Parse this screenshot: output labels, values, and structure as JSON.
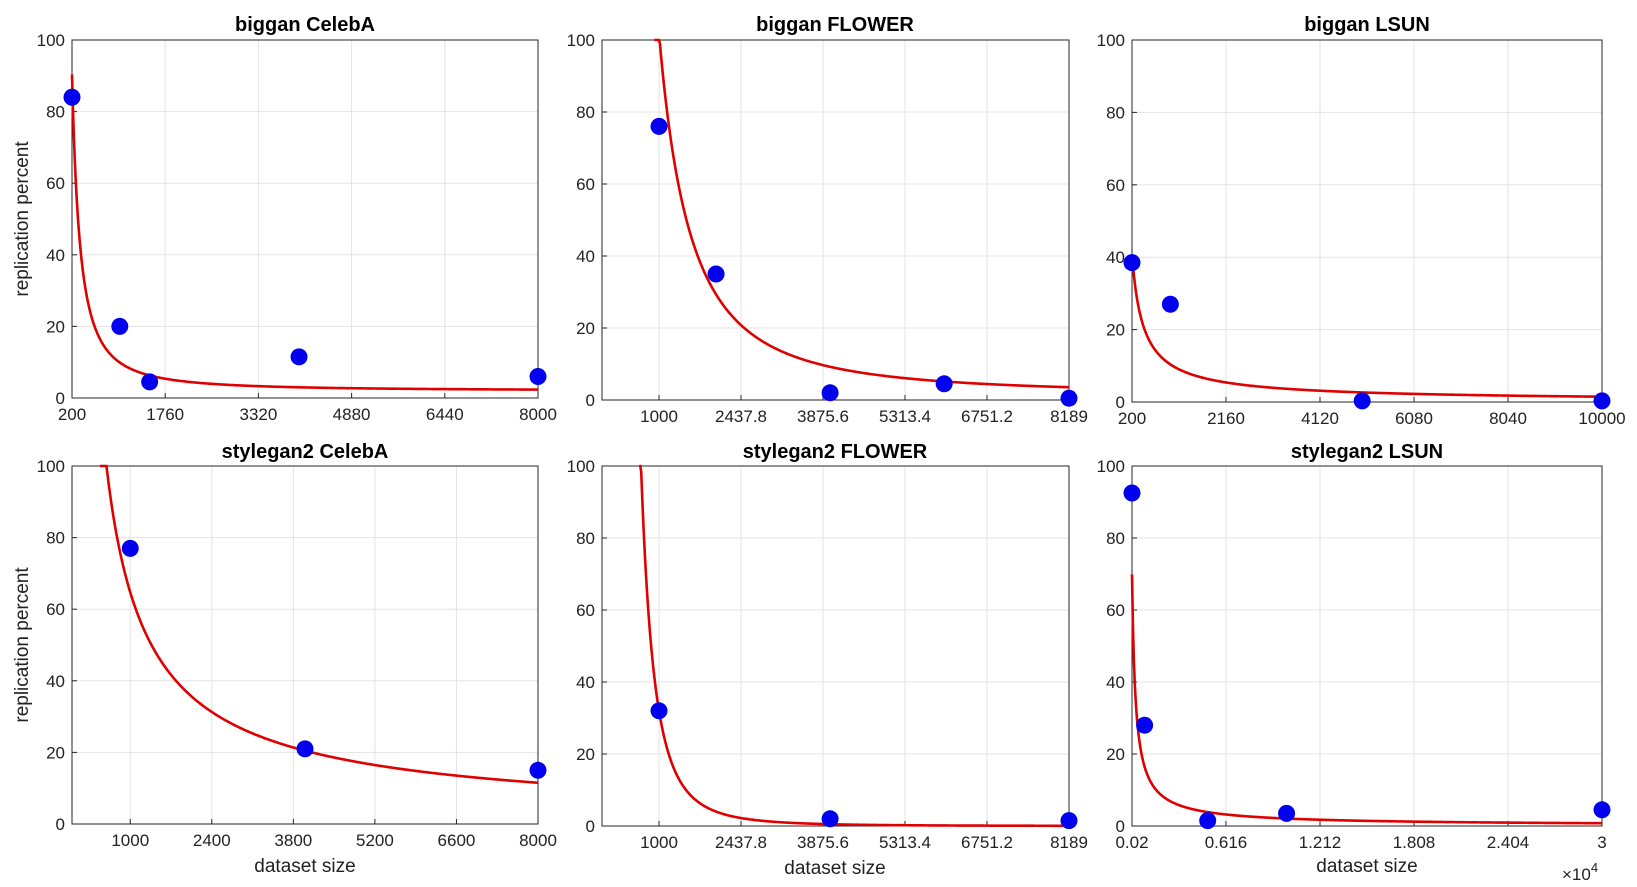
{
  "colors": {
    "fit": "#e00000",
    "points": "#0000ee",
    "grid": "#e3e3e3",
    "axis": "#262626"
  },
  "chart_data": [
    {
      "type": "scatter",
      "title": "biggan CelebA",
      "xlabel": "",
      "ylabel": "replication percent",
      "xlim": [
        200,
        8000
      ],
      "ylim": [
        0,
        100
      ],
      "xticks": [
        200,
        1760,
        3320,
        4880,
        6440,
        8000
      ],
      "xtick_labels": [
        "200",
        "1760",
        "3320",
        "4880",
        "6440",
        "8000"
      ],
      "yticks": [
        0,
        20,
        40,
        60,
        80,
        100
      ],
      "ytick_labels": [
        "0",
        "20",
        "40",
        "60",
        "80",
        "100"
      ],
      "x": [
        200,
        1000,
        1500,
        4000,
        8000
      ],
      "y": [
        84,
        20,
        4.5,
        11.5,
        6
      ],
      "fit": {
        "type": "power",
        "a": 250000,
        "b": -1.5,
        "c": 2
      }
    },
    {
      "type": "scatter",
      "title": "biggan FLOWER",
      "xlabel": "",
      "ylabel": "",
      "xlim": [
        0,
        8189
      ],
      "ylim": [
        0,
        100
      ],
      "xticks": [
        1000,
        2437.8,
        3875.6,
        5313.4,
        6751.2,
        8189
      ],
      "xtick_labels": [
        "1000",
        "2437.8",
        "3875.6",
        "5313.4",
        "6751.2",
        "8189"
      ],
      "yticks": [
        0,
        20,
        40,
        60,
        80,
        100
      ],
      "ytick_labels": [
        "0",
        "20",
        "40",
        "60",
        "80",
        "100"
      ],
      "x": [
        1000,
        2000,
        4000,
        6000,
        8189
      ],
      "y": [
        76,
        35,
        2,
        4.5,
        0.5
      ],
      "fit": {
        "type": "power",
        "a": 35600000,
        "b": -1.85,
        "c": 1.5
      }
    },
    {
      "type": "scatter",
      "title": "biggan LSUN",
      "xlabel": "",
      "ylabel": "",
      "xlim": [
        200,
        10000
      ],
      "ylim": [
        0,
        100
      ],
      "xticks": [
        200,
        2160,
        4120,
        6080,
        8040,
        10000
      ],
      "xtick_labels": [
        "200",
        "2160",
        "4120",
        "6080",
        "8040",
        "10000"
      ],
      "yticks": [
        0,
        20,
        40,
        60,
        80,
        100
      ],
      "ytick_labels": [
        "0",
        "20",
        "40",
        "60",
        "80",
        "100"
      ],
      "x": [
        200,
        1000,
        5000,
        10000
      ],
      "y": [
        38.5,
        27,
        0.3,
        0.3
      ],
      "fit": {
        "type": "power",
        "a": 3685,
        "b": -0.85,
        "c": 0
      }
    },
    {
      "type": "scatter",
      "title": "stylegan2 CelebA",
      "xlabel": "dataset size",
      "ylabel": "replication percent",
      "xlim": [
        0,
        8000
      ],
      "ylim": [
        0,
        100
      ],
      "xticks": [
        1000,
        2400,
        3800,
        5200,
        6600,
        8000
      ],
      "xtick_labels": [
        "1000",
        "2400",
        "3800",
        "5200",
        "6600",
        "8000"
      ],
      "yticks": [
        0,
        20,
        40,
        60,
        80,
        100
      ],
      "ytick_labels": [
        "0",
        "20",
        "40",
        "60",
        "80",
        "100"
      ],
      "x": [
        1000,
        4000,
        8000
      ],
      "y": [
        77,
        21,
        15
      ],
      "fit": {
        "type": "power",
        "a": 20000,
        "b": -0.83,
        "c": 0
      }
    },
    {
      "type": "scatter",
      "title": "stylegan2 FLOWER",
      "xlabel": "dataset size",
      "ylabel": "",
      "xlim": [
        0,
        8189
      ],
      "ylim": [
        0,
        100
      ],
      "xticks": [
        1000,
        2437.8,
        3875.6,
        5313.4,
        6751.2,
        8189
      ],
      "xtick_labels": [
        "1000",
        "2437.8",
        "3875.6",
        "5313.4",
        "6751.2",
        "8189"
      ],
      "yticks": [
        0,
        20,
        40,
        60,
        80,
        100
      ],
      "ytick_labels": [
        "0",
        "20",
        "40",
        "60",
        "80",
        "100"
      ],
      "x": [
        1000,
        4000,
        8189
      ],
      "y": [
        32,
        2,
        1.5
      ],
      "fit": {
        "type": "power",
        "a": 32000000000,
        "b": -3,
        "c": 0
      }
    },
    {
      "type": "scatter",
      "title": "stylegan2 LSUN",
      "xlabel": "dataset size",
      "ylabel": "",
      "xlim": [
        200,
        30000
      ],
      "ylim": [
        0,
        100
      ],
      "xticks": [
        200,
        6160,
        12120,
        18080,
        24040,
        30000
      ],
      "xtick_labels": [
        "0.02",
        "0.616",
        "1.212",
        "1.808",
        "2.404",
        "3"
      ],
      "x_exponent_label": "×10",
      "x_exponent": "4",
      "yticks": [
        0,
        20,
        40,
        60,
        80,
        100
      ],
      "ytick_labels": [
        "0",
        "20",
        "40",
        "60",
        "80",
        "100"
      ],
      "x": [
        200,
        1000,
        5000,
        10000,
        30000
      ],
      "y": [
        92.5,
        28,
        1.5,
        3.5,
        4.5
      ],
      "fit": {
        "type": "power",
        "a": 8230,
        "b": -0.9,
        "c": 0
      }
    }
  ]
}
